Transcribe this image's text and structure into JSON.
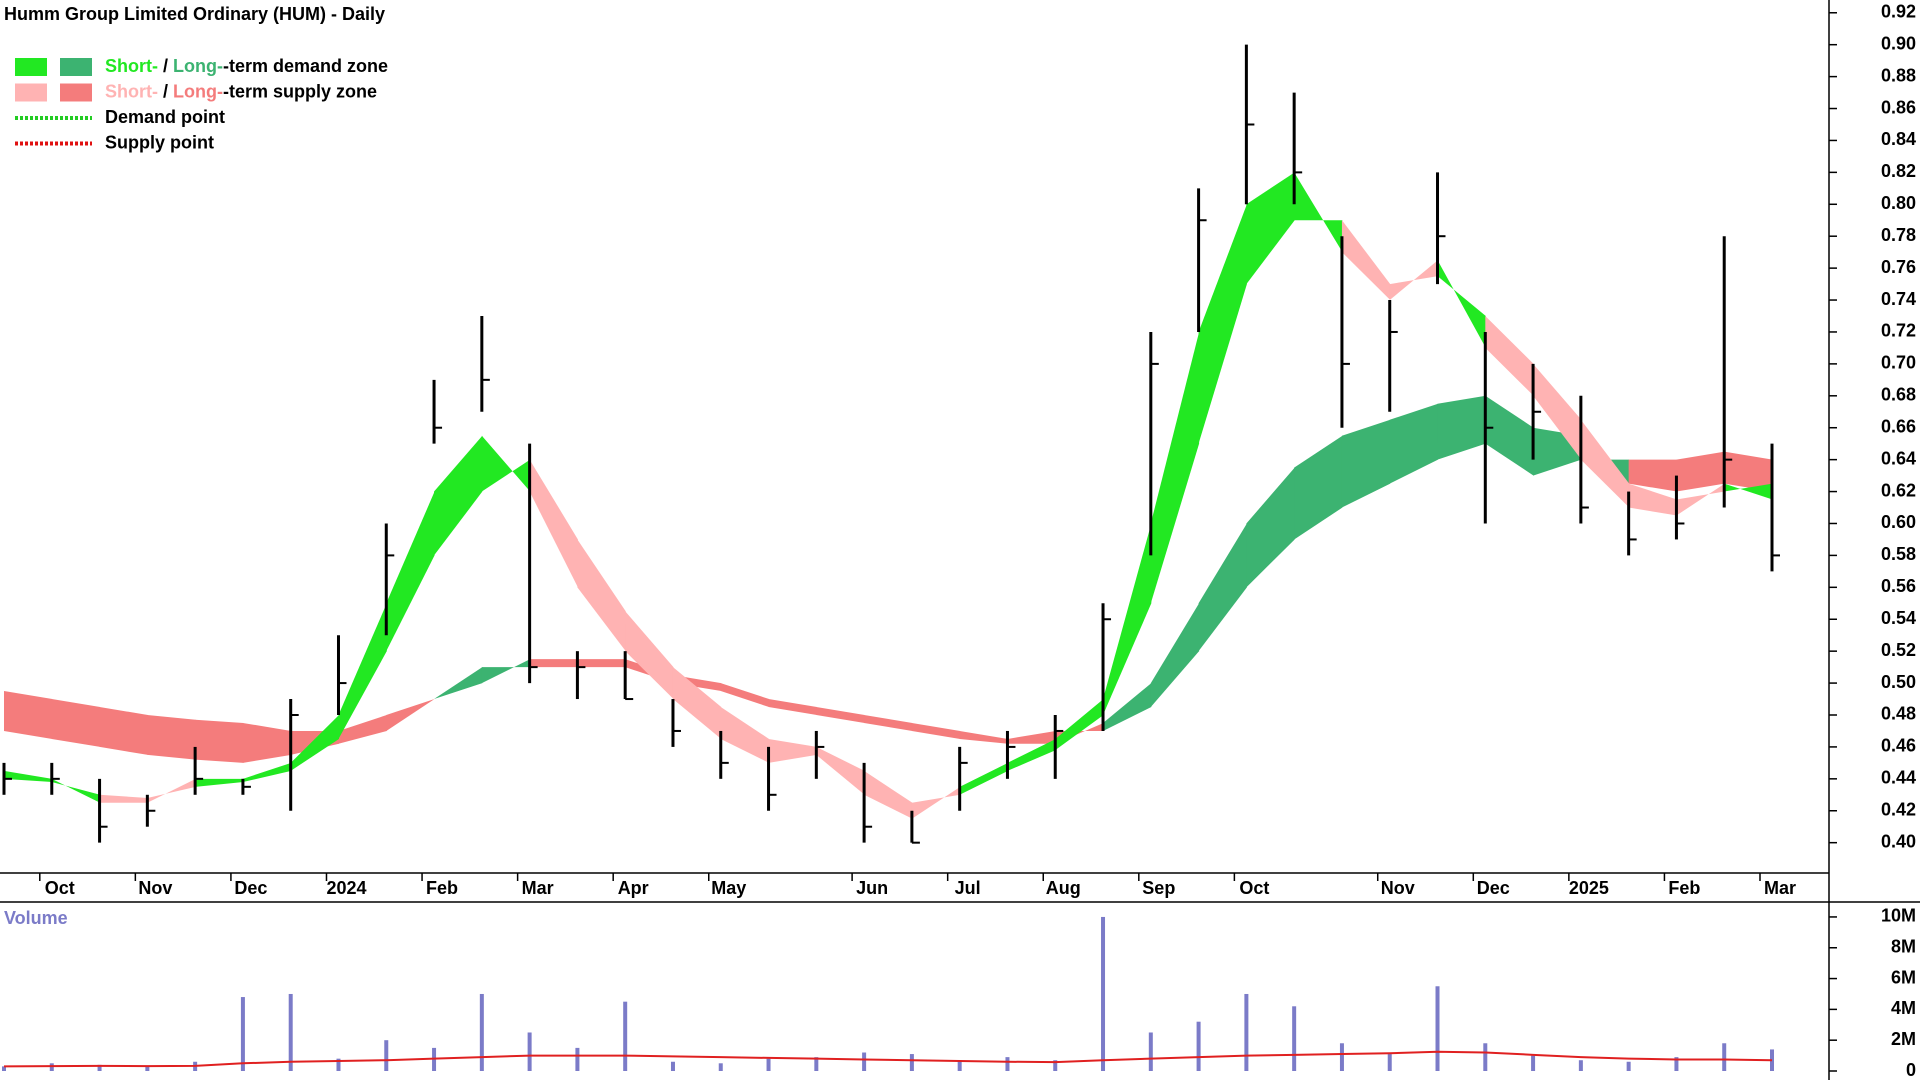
{
  "chart_data": {
    "type": "candlestick",
    "title": "Humm Group Limited Ordinary (HUM) - Daily",
    "categories": [
      null,
      "Oct",
      null,
      "Nov",
      null,
      "Dec",
      null,
      "2024",
      null,
      "Feb",
      null,
      "Mar",
      null,
      "Apr",
      null,
      "May",
      null,
      null,
      "Jun",
      null,
      "Jul",
      null,
      "Aug",
      null,
      "Sep",
      null,
      "Oct",
      null,
      null,
      "Nov",
      null,
      "Dec",
      null,
      "2025",
      null,
      "Feb",
      null,
      "Mar"
    ],
    "high": [
      0.45,
      0.45,
      0.44,
      0.43,
      0.46,
      0.44,
      0.49,
      0.53,
      0.6,
      0.69,
      0.73,
      0.65,
      0.52,
      0.52,
      0.49,
      0.47,
      0.46,
      0.47,
      0.45,
      0.42,
      0.46,
      0.47,
      0.48,
      0.55,
      0.72,
      0.81,
      0.9,
      0.87,
      0.78,
      0.74,
      0.82,
      0.72,
      0.7,
      0.68,
      0.62,
      0.63,
      0.78,
      0.65
    ],
    "low": [
      0.43,
      0.43,
      0.4,
      0.41,
      0.43,
      0.43,
      0.42,
      0.48,
      0.53,
      0.65,
      0.67,
      0.5,
      0.49,
      0.49,
      0.46,
      0.44,
      0.42,
      0.44,
      0.4,
      0.4,
      0.42,
      0.44,
      0.44,
      0.47,
      0.58,
      0.72,
      0.8,
      0.8,
      0.66,
      0.67,
      0.75,
      0.6,
      0.64,
      0.6,
      0.58,
      0.59,
      0.61,
      0.57
    ],
    "close": [
      0.44,
      0.44,
      0.41,
      0.42,
      0.44,
      0.435,
      0.48,
      0.5,
      0.58,
      0.66,
      0.69,
      0.51,
      0.51,
      0.49,
      0.47,
      0.45,
      0.43,
      0.46,
      0.41,
      0.4,
      0.45,
      0.46,
      0.47,
      0.54,
      0.7,
      0.79,
      0.85,
      0.82,
      0.7,
      0.72,
      0.78,
      0.66,
      0.67,
      0.61,
      0.59,
      0.6,
      0.64,
      0.58
    ],
    "zones": {
      "short_fast": [
        0.445,
        0.44,
        0.425,
        0.425,
        0.44,
        0.44,
        0.45,
        0.48,
        0.55,
        0.62,
        0.655,
        0.62,
        0.56,
        0.52,
        0.49,
        0.465,
        0.45,
        0.455,
        0.43,
        0.415,
        0.435,
        0.45,
        0.465,
        0.49,
        0.6,
        0.72,
        0.8,
        0.82,
        0.77,
        0.74,
        0.765,
        0.71,
        0.68,
        0.64,
        0.61,
        0.605,
        0.625,
        0.615
      ],
      "short_slow": [
        0.44,
        0.438,
        0.43,
        0.428,
        0.435,
        0.438,
        0.445,
        0.465,
        0.52,
        0.58,
        0.62,
        0.64,
        0.59,
        0.545,
        0.51,
        0.485,
        0.465,
        0.46,
        0.445,
        0.425,
        0.43,
        0.445,
        0.458,
        0.48,
        0.55,
        0.65,
        0.75,
        0.79,
        0.79,
        0.75,
        0.755,
        0.73,
        0.7,
        0.665,
        0.625,
        0.615,
        0.62,
        0.625
      ],
      "long_fast": [
        0.47,
        0.465,
        0.46,
        0.455,
        0.452,
        0.45,
        0.455,
        0.462,
        0.47,
        0.49,
        0.51,
        0.51,
        0.51,
        0.51,
        0.5,
        0.495,
        0.485,
        0.48,
        0.475,
        0.47,
        0.465,
        0.462,
        0.462,
        0.475,
        0.5,
        0.55,
        0.6,
        0.635,
        0.655,
        0.665,
        0.675,
        0.68,
        0.66,
        0.655,
        0.625,
        0.62,
        0.625,
        0.62
      ],
      "long_slow": [
        0.495,
        0.49,
        0.485,
        0.48,
        0.477,
        0.475,
        0.47,
        0.47,
        0.48,
        0.49,
        0.5,
        0.515,
        0.515,
        0.515,
        0.505,
        0.5,
        0.49,
        0.485,
        0.48,
        0.475,
        0.47,
        0.465,
        0.47,
        0.47,
        0.485,
        0.52,
        0.56,
        0.59,
        0.61,
        0.625,
        0.64,
        0.65,
        0.63,
        0.64,
        0.64,
        0.64,
        0.645,
        0.64
      ]
    },
    "colors": {
      "text": "#000000",
      "price": "#000000",
      "short_demand": "#22e822",
      "long_demand": "#3cb371",
      "short_supply": "#ffb3b3",
      "long_supply": "#f47c7c",
      "demand_point": "#22cc22",
      "supply_point": "#e01010",
      "volume": "#7b7bc8",
      "volume_average": "#e02020"
    },
    "legend": [
      {
        "swatches": [
          "short_demand",
          "long_demand"
        ],
        "parts": [
          {
            "text": "Short-",
            "color": "short_demand"
          },
          {
            "text": " / ",
            "color": "text"
          },
          {
            "text": "Long-",
            "color": "long_demand"
          },
          {
            "text": "-term demand zone",
            "color": "text"
          }
        ]
      },
      {
        "swatches": [
          "short_supply",
          "long_supply"
        ],
        "parts": [
          {
            "text": "Short-",
            "color": "short_supply"
          },
          {
            "text": " / ",
            "color": "text"
          },
          {
            "text": "Long-",
            "color": "long_supply"
          },
          {
            "text": "-term supply zone",
            "color": "text"
          }
        ]
      },
      {
        "line": "demand_point",
        "parts": [
          {
            "text": "Demand point",
            "color": "text"
          }
        ]
      },
      {
        "line": "supply_point",
        "parts": [
          {
            "text": "Supply point",
            "color": "text"
          }
        ]
      }
    ],
    "ylim": [
      0.381,
      0.928
    ],
    "yticks": [
      {
        "value": 0.4,
        "label": "0.40"
      },
      0.42,
      0.44,
      0.46,
      0.48,
      {
        "value": 0.5,
        "label": "0.50"
      },
      0.52,
      0.54,
      0.56,
      0.58,
      {
        "value": 0.6,
        "label": "0.60"
      },
      0.62,
      0.64,
      0.66,
      0.68,
      {
        "value": 0.7,
        "label": "0.70"
      },
      0.72,
      0.74,
      0.76,
      0.78,
      {
        "value": 0.8,
        "label": "0.80"
      },
      0.82,
      0.84,
      0.86,
      0.88,
      {
        "value": 0.9,
        "label": "0.90"
      },
      0.92
    ],
    "volume": {
      "label": "Volume",
      "values": [
        300000,
        500000,
        400000,
        300000,
        600000,
        4800000,
        5000000,
        800000,
        2000000,
        1500000,
        5000000,
        2500000,
        1500000,
        4500000,
        600000,
        500000,
        800000,
        900000,
        1200000,
        1100000,
        700000,
        900000,
        700000,
        10000000,
        2500000,
        3200000,
        5000000,
        4200000,
        1800000,
        1100000,
        5500000,
        1800000,
        1000000,
        700000,
        600000,
        900000,
        1800000,
        1400000
      ],
      "average": [
        300000,
        320000,
        330000,
        320000,
        330000,
        500000,
        600000,
        650000,
        700000,
        800000,
        900000,
        1000000,
        1000000,
        1000000,
        950000,
        900000,
        850000,
        800000,
        750000,
        700000,
        650000,
        600000,
        580000,
        700000,
        800000,
        900000,
        1000000,
        1050000,
        1100000,
        1150000,
        1250000,
        1200000,
        1050000,
        900000,
        800000,
        750000,
        750000,
        700000
      ],
      "ylim": [
        0,
        10970000
      ],
      "yticks": [
        0,
        {
          "value": 2000000,
          "label": "2M"
        },
        {
          "value": 4000000,
          "label": "4M"
        },
        {
          "value": 6000000,
          "label": "6M"
        },
        {
          "value": 8000000,
          "label": "8M"
        },
        {
          "value": 10000000,
          "label": "10M"
        }
      ]
    }
  }
}
